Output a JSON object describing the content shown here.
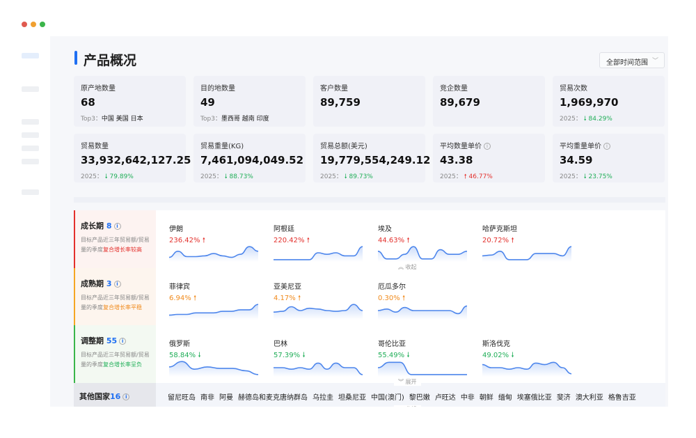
{
  "window_controls": {
    "close": "#e05a4f",
    "minimize": "#f0a030",
    "maximize": "#3bb54a"
  },
  "header": {
    "title": "产品概况",
    "time_range": "全部时间范围"
  },
  "cards": [
    {
      "label": "原产地数量",
      "value": "68",
      "sub_prefix": "Top3：",
      "sub": "中国 美国 日本"
    },
    {
      "label": "目的地数量",
      "value": "49",
      "sub_prefix": "Top3：",
      "sub": "墨西哥 越南 印度"
    },
    {
      "label": "客户数量",
      "value": "89,759"
    },
    {
      "label": "竞企数量",
      "value": "89,679"
    },
    {
      "label": "贸易次数",
      "value": "1,969,970",
      "year": "2025：",
      "change": "84.29%",
      "dir": "down"
    },
    {
      "label": "贸易数量",
      "value": "33,932,642,127.25",
      "year": "2025：",
      "change": "79.89%",
      "dir": "down"
    },
    {
      "label": "贸易重量(KG)",
      "value": "7,461,094,049.52",
      "year": "2025：",
      "change": "88.73%",
      "dir": "down"
    },
    {
      "label": "贸易总额(美元)",
      "value": "19,779,554,249.12",
      "year": "2025：",
      "change": "89.73%",
      "dir": "down"
    },
    {
      "label": "平均数量单价",
      "value": "43.38",
      "year": "2025：",
      "change": "46.77%",
      "dir": "up",
      "info": true
    },
    {
      "label": "平均重量单价",
      "value": "34.59",
      "year": "2025：",
      "change": "23.75%",
      "dir": "down",
      "info": true
    }
  ],
  "stages": [
    {
      "name": "成长期",
      "count": "8",
      "desc": "目标产品近三年贸易额/贸易量的季度",
      "desc_hl": "复合增长率较高",
      "color": "#e3302c",
      "bg": "#fdf3f1",
      "countries": [
        {
          "name": "伊朗",
          "pct": "236.42%",
          "dir": "up",
          "trend": [
            0.2,
            0.6,
            0.25,
            0.25,
            0.3,
            0.45,
            0.3,
            0.2,
            0.4,
            0.9,
            0.6
          ]
        },
        {
          "name": "阿根廷",
          "pct": "220.42%",
          "dir": "up",
          "trend": [
            0.05,
            0.05,
            0.05,
            0.05,
            0.05,
            0.5,
            0.4,
            0.5,
            0.3,
            0.3,
            0.9
          ]
        },
        {
          "name": "埃及",
          "pct": "44.63%",
          "dir": "up",
          "trend": [
            0.6,
            0.1,
            0.1,
            0.4,
            0.9,
            0.1,
            0.1,
            0.7,
            0.4,
            0.4,
            0.6
          ]
        },
        {
          "name": "哈萨克斯坦",
          "pct": "20.72%",
          "dir": "up",
          "trend": [
            0.3,
            0.35,
            0.6,
            0.05,
            0.05,
            0.05,
            0.45,
            0.45,
            0.45,
            0.3,
            0.9
          ]
        }
      ]
    },
    {
      "name": "成熟期",
      "count": "3",
      "desc": "目标产品近三年贸易额/贸易量的季度",
      "desc_hl": "复合增长率平稳",
      "color": "#f5a623",
      "bg": "#fdf5ee",
      "countries": [
        {
          "name": "菲律宾",
          "pct": "6.94%",
          "dir": "up",
          "trend": [
            0.2,
            0.25,
            0.25,
            0.35,
            0.35,
            0.35,
            0.45,
            0.45,
            0.55,
            0.55,
            0.9
          ]
        },
        {
          "name": "亚美尼亚",
          "pct": "4.17%",
          "dir": "up",
          "trend": [
            0.4,
            0.45,
            0.75,
            0.5,
            0.65,
            0.6,
            0.5,
            0.45,
            0.5,
            0.9,
            0.5
          ]
        },
        {
          "name": "厄瓜多尔",
          "pct": "0.30%",
          "dir": "up",
          "trend": [
            0.5,
            0.6,
            0.4,
            0.7,
            0.5,
            0.5,
            0.5,
            0.5,
            0.5,
            0.3,
            0.8
          ]
        }
      ]
    },
    {
      "name": "调整期",
      "count": "55",
      "desc": "目标产品近三年贸易额/贸易量的季度",
      "desc_hl": "复合增长率呈负",
      "color": "#3bb54a",
      "bg": "#f3f9f2",
      "countries": [
        {
          "name": "俄罗斯",
          "pct": "58.84%",
          "dir": "down",
          "trend": [
            0.55,
            0.9,
            0.4,
            0.55,
            0.45,
            0.45,
            0.3,
            0.05
          ]
        },
        {
          "name": "巴林",
          "pct": "57.39%",
          "dir": "down",
          "trend": [
            0.5,
            0.5,
            0.4,
            0.5,
            0.4,
            0.8,
            0.4,
            0.8,
            0.5,
            0.5,
            0.05
          ]
        },
        {
          "name": "哥伦比亚",
          "pct": "55.49%",
          "dir": "down",
          "trend": [
            0.5,
            0.85,
            0.85,
            0.05,
            0.05,
            0.05,
            0.05,
            0.05,
            0.05
          ]
        },
        {
          "name": "斯洛伐克",
          "pct": "49.02%",
          "dir": "down",
          "trend": [
            0.7,
            0.5,
            0.5,
            0.4,
            0.5,
            0.4,
            0.8,
            0.7,
            0.85,
            0.5,
            0.1
          ]
        }
      ]
    }
  ],
  "toggle": {
    "collapse": "收起",
    "expand": "展开"
  },
  "others": {
    "name": "其他国家",
    "count": "16",
    "countries": [
      "留尼旺岛",
      "南非",
      "阿曼",
      "赫德岛和麦克唐纳群岛",
      "乌拉圭",
      "坦桑尼亚",
      "中国(澳门)",
      "黎巴嫩",
      "卢旺达",
      "中非",
      "朝鲜",
      "缅甸",
      "埃塞俄比亚",
      "斐济",
      "澳大利亚",
      "格鲁吉亚"
    ]
  }
}
